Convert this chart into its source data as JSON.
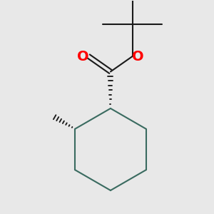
{
  "bg_color": "#e8e8e8",
  "bond_color": "#3a6b60",
  "bond_color_dark": "#1a1a1a",
  "o_color": "#ff0000",
  "line_width": 1.5,
  "hatch_lw": 1.2
}
